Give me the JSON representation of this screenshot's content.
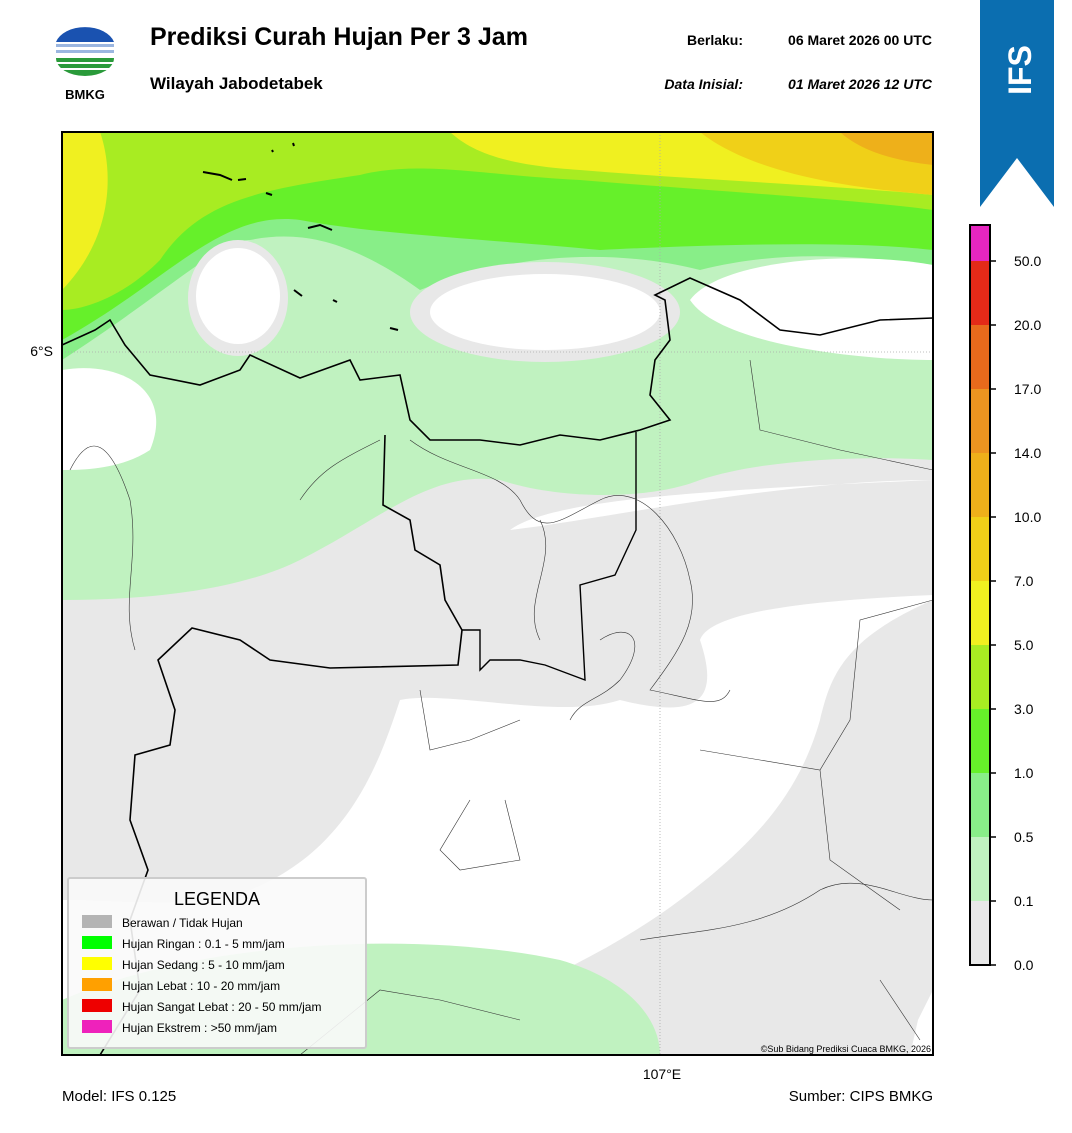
{
  "header": {
    "logo_text": "BMKG",
    "title": "Prediksi Curah Hujan Per 3 Jam",
    "subtitle": "Wilayah Jabodetabek",
    "valid_label": "Berlaku:",
    "valid_value": "06 Maret 2026 00 UTC",
    "init_label": "Data Inisial:",
    "init_value": "01 Maret 2026 12 UTC"
  },
  "badge": "IFS",
  "map": {
    "lat_label": "6°S",
    "lon_label": "107°E",
    "credit": "©Sub Bidang Prediksi Cuaca BMKG, 2026"
  },
  "legend": {
    "title": "LEGENDA",
    "items": [
      {
        "label": "Berawan / Tidak Hujan",
        "color": "#b4b4b4"
      },
      {
        "label": "Hujan Ringan : 0.1 - 5 mm/jam",
        "color": "#00ff00"
      },
      {
        "label": "Hujan Sedang : 5 - 10 mm/jam",
        "color": "#ffff00"
      },
      {
        "label": "Hujan Lebat : 10 - 20 mm/jam",
        "color": "#ffa000"
      },
      {
        "label": "Hujan Sangat Lebat : 20 - 50 mm/jam",
        "color": "#ee0000"
      },
      {
        "label": "Hujan Ekstrem : >50 mm/jam",
        "color": "#ee22bb"
      }
    ]
  },
  "colorbar": {
    "ticks": [
      "0.0",
      "0.1",
      "0.5",
      "1.0",
      "3.0",
      "5.0",
      "7.0",
      "10.0",
      "14.0",
      "17.0",
      "20.0",
      "50.0"
    ],
    "colors": [
      "#e8e8e8",
      "#c0f2c0",
      "#88ee88",
      "#66f02a",
      "#a8ec22",
      "#f0f020",
      "#f0d018",
      "#eeb01a",
      "#ec9420",
      "#e86a1c",
      "#e42a18",
      "#e626c0"
    ]
  },
  "footer": {
    "model": "Model: IFS 0.125",
    "source": "Sumber: CIPS BMKG"
  }
}
